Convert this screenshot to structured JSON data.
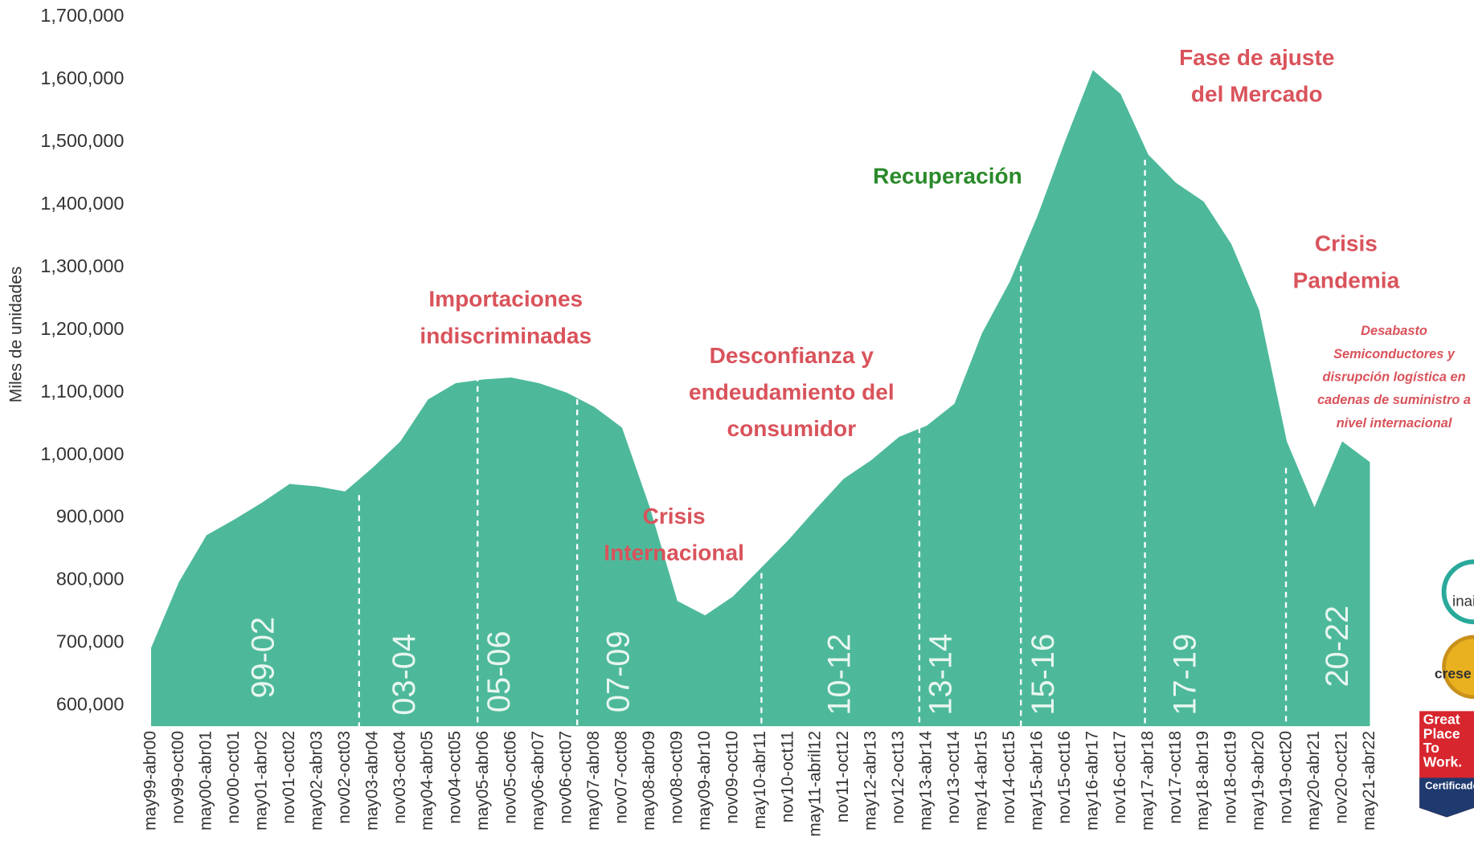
{
  "chart_data": {
    "type": "area",
    "y_label": "Miles de unidades",
    "color": "#4db99a",
    "categories": [
      "may99-abr00",
      "nov99-oct00",
      "may00-abr01",
      "nov00-oct01",
      "may01-abr02",
      "nov01-oct02",
      "may02-abr03",
      "nov02-oct03",
      "may03-abr04",
      "nov03-oct04",
      "may04-abr05",
      "nov04-oct05",
      "may05-abr06",
      "nov05-oct06",
      "may06-abr07",
      "nov06-oct07",
      "may07-abr08",
      "nov07-oct08",
      "may08-abr09",
      "nov08-oct09",
      "may09-abr10",
      "nov09-oct10",
      "may10-abr11",
      "nov10-oct11",
      "may11-abril12",
      "nov11-oct12",
      "may12-abr13",
      "nov12-oct13",
      "may13-abr14",
      "nov13-oct14",
      "may14-abr15",
      "nov14-oct15",
      "may15-abr16",
      "nov15-oct16",
      "may16-abr17",
      "nov16-oct17",
      "may17-abr18",
      "nov17-oct18",
      "may18-abr19",
      "nov18-oct19",
      "may19-abr20",
      "nov19-oct20",
      "may20-abr21",
      "nov20-oct21",
      "may21-abr22"
    ],
    "values": [
      692000,
      797000,
      872000,
      897000,
      924000,
      954000,
      950000,
      942000,
      980000,
      1022000,
      1089000,
      1115000,
      1121000,
      1124000,
      1115000,
      1100000,
      1077000,
      1044000,
      917000,
      767000,
      744000,
      774000,
      819000,
      864000,
      914000,
      962000,
      992000,
      1029000,
      1047000,
      1082000,
      1195000,
      1277000,
      1382000,
      1502000,
      1615000,
      1577000,
      1480000,
      1435000,
      1405000,
      1337000,
      1232000,
      1022000,
      917000,
      1022000,
      989000
    ],
    "ylim": [
      567000,
      1700000
    ],
    "yticks": [
      {
        "value": 600000,
        "label": "600,000"
      },
      {
        "value": 700000,
        "label": "700,000"
      },
      {
        "value": 800000,
        "label": "800,000"
      },
      {
        "value": 900000,
        "label": "900,000"
      },
      {
        "value": 1000000,
        "label": "1,000,000"
      },
      {
        "value": 1100000,
        "label": "1,100,000"
      },
      {
        "value": 1200000,
        "label": "1,200,000"
      },
      {
        "value": 1300000,
        "label": "1,300,000"
      },
      {
        "value": 1400000,
        "label": "1,400,000"
      },
      {
        "value": 1500000,
        "label": "1,500,000"
      },
      {
        "value": 1600000,
        "label": "1,600,000"
      },
      {
        "value": 1700000,
        "label": "1,700,000"
      }
    ],
    "periods": [
      "99-02",
      "03-04",
      "05-06",
      "07-09",
      "10-12",
      "13-14",
      "15-16",
      "17-19",
      "20-22"
    ],
    "annotations": [
      {
        "lines": [
          "Importaciones",
          "indiscriminadas"
        ],
        "color": "#d9535b"
      },
      {
        "lines": [
          "Crisis",
          "Internacional"
        ],
        "color": "#d9535b"
      },
      {
        "lines": [
          "Desconfianza y",
          "endeudamiento del",
          "consumidor"
        ],
        "color": "#d9535b"
      },
      {
        "lines": [
          "Recuperación"
        ],
        "color": "#2a8a2a"
      },
      {
        "lines": [
          "Fase de ajuste",
          "del Mercado"
        ],
        "color": "#d9535b"
      },
      {
        "lines": [
          "Crisis",
          "Pandemia"
        ],
        "color": "#d9535b"
      },
      {
        "lines": [
          "Desabasto",
          "Semiconductores y",
          "disrupción logística en",
          "cadenas de suministro a",
          "nivel internacional"
        ],
        "color": "#d9535b"
      }
    ],
    "badges": {
      "inai": "inai",
      "crese": "crese",
      "gptw": [
        "Great",
        "Place",
        "To",
        "Work."
      ],
      "certified": "Certificado"
    }
  }
}
